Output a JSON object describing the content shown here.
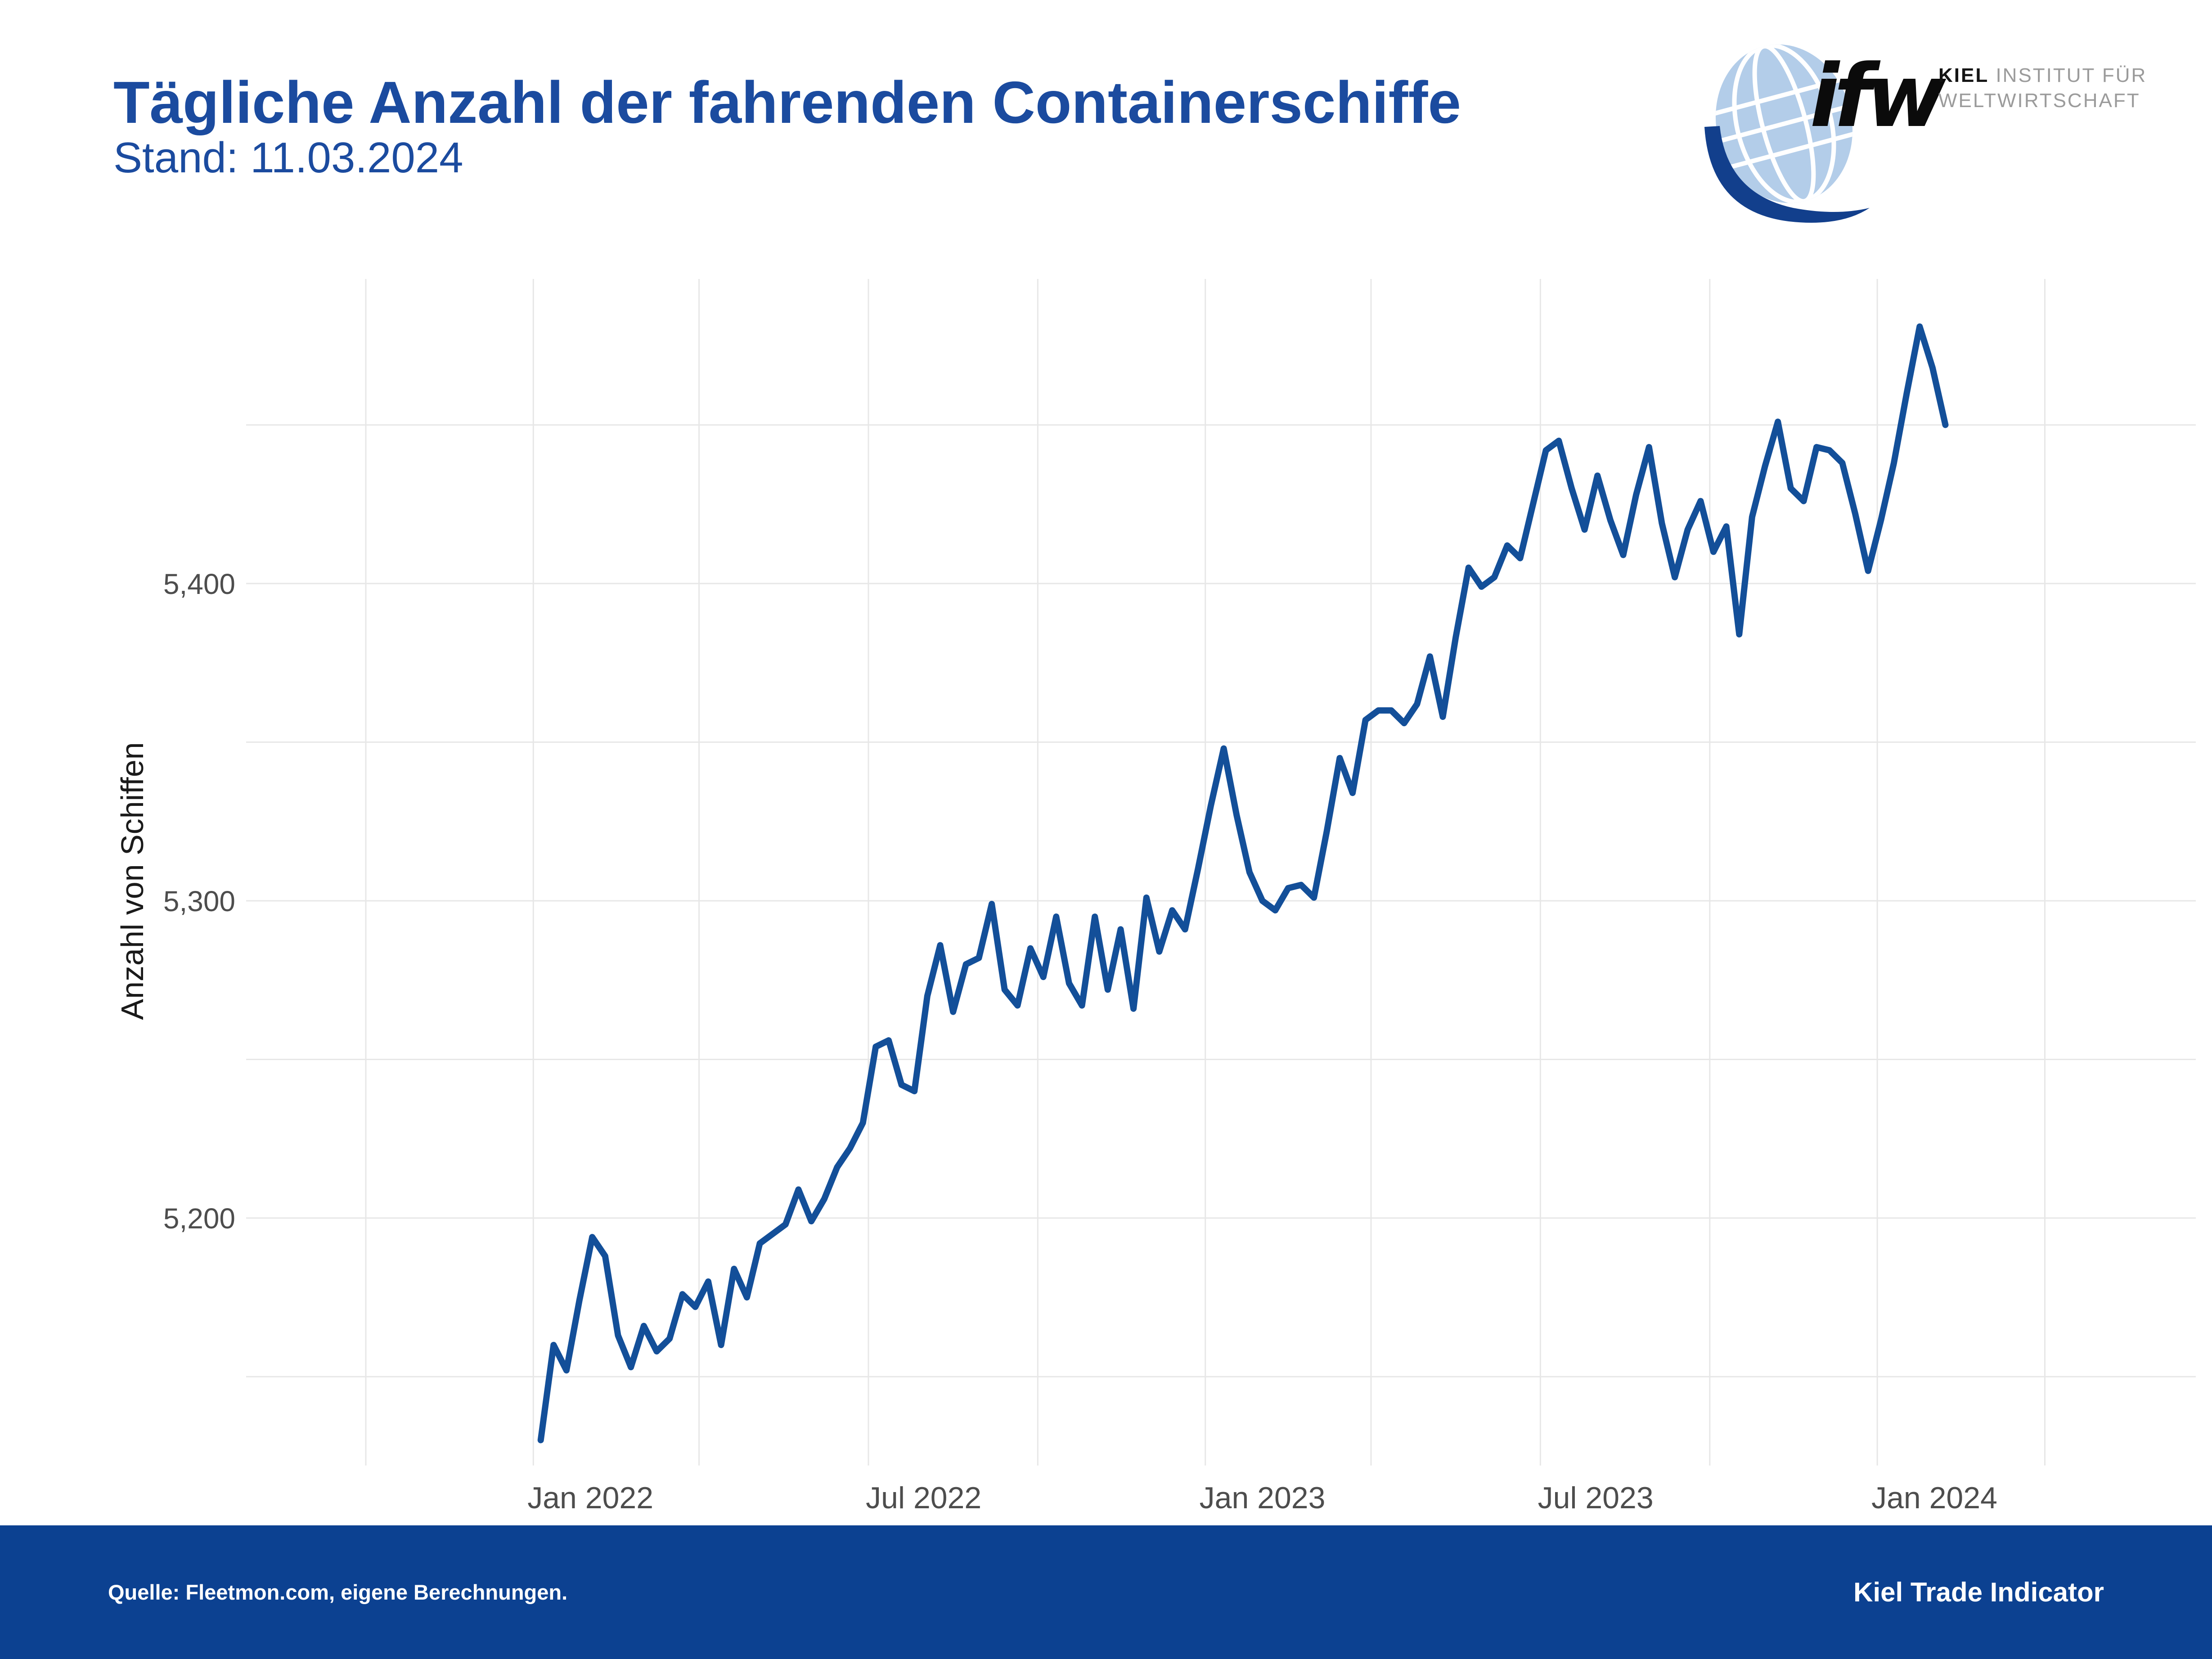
{
  "header": {
    "title": "Tägliche Anzahl der fahrenden Containerschiffe",
    "subtitle": "Stand: 11.03.2024"
  },
  "logo": {
    "wordmark": "ifw",
    "org_bold": "KIEL",
    "org_line1_rest": " INSTITUT FÜR",
    "org_line2": "WELTWIRTSCHAFT",
    "globe_color": "#b3cde9",
    "swoosh_color": "#123f8c"
  },
  "footer": {
    "source": "Quelle: Fleetmon.com, eigene Berechnungen.",
    "brand": "Kiel Trade Indicator",
    "bar_color": "#0c4191"
  },
  "chart_data": {
    "type": "line",
    "title": "Tägliche Anzahl der fahrenden Containerschiffe",
    "xlabel": "",
    "ylabel": "Anzahl von Schiffen",
    "line_color": "#134f99",
    "grid": "on",
    "legend": "none",
    "grid_color": "#e7e7e7",
    "tick_label_color": "#4d4d4d",
    "axis_title_color": "#1a1a1a",
    "xlim": [
      "2021-06-28",
      "2024-05-22"
    ],
    "ylim": [
      5122,
      5496
    ],
    "y_tick_values": [
      5200,
      5300,
      5400
    ],
    "y_tick_labels": [
      "5,200",
      "5,300",
      "5,400"
    ],
    "y_gridlines": [
      5150,
      5200,
      5250,
      5300,
      5350,
      5400,
      5450
    ],
    "x_ticks": [
      {
        "date": "2022-01-01",
        "label": "Jan 2022"
      },
      {
        "date": "2022-07-01",
        "label": "Jul 2022"
      },
      {
        "date": "2023-01-01",
        "label": "Jan 2023"
      },
      {
        "date": "2023-07-01",
        "label": "Jul 2023"
      },
      {
        "date": "2024-01-01",
        "label": "Jan 2024"
      }
    ],
    "x_gridline_dates": [
      "2021-09-01",
      "2021-12-01",
      "2022-03-01",
      "2022-06-01",
      "2022-09-01",
      "2022-12-01",
      "2023-03-01",
      "2023-06-01",
      "2023-09-01",
      "2023-12-01",
      "2024-03-01"
    ],
    "x": [
      "2021-12-05",
      "2021-12-12",
      "2021-12-19",
      "2021-12-26",
      "2022-01-02",
      "2022-01-09",
      "2022-01-16",
      "2022-01-23",
      "2022-01-30",
      "2022-02-06",
      "2022-02-13",
      "2022-02-20",
      "2022-02-27",
      "2022-03-06",
      "2022-03-13",
      "2022-03-20",
      "2022-03-27",
      "2022-04-03",
      "2022-04-10",
      "2022-04-17",
      "2022-04-24",
      "2022-05-01",
      "2022-05-08",
      "2022-05-15",
      "2022-05-22",
      "2022-05-29",
      "2022-06-05",
      "2022-06-12",
      "2022-06-19",
      "2022-06-26",
      "2022-07-03",
      "2022-07-10",
      "2022-07-17",
      "2022-07-24",
      "2022-07-31",
      "2022-08-07",
      "2022-08-14",
      "2022-08-21",
      "2022-08-28",
      "2022-09-04",
      "2022-09-11",
      "2022-09-18",
      "2022-09-25",
      "2022-10-02",
      "2022-10-09",
      "2022-10-16",
      "2022-10-23",
      "2022-10-30",
      "2022-11-06",
      "2022-11-13",
      "2022-11-20",
      "2022-11-27",
      "2022-12-04",
      "2022-12-11",
      "2022-12-18",
      "2022-12-25",
      "2023-01-01",
      "2023-01-08",
      "2023-01-15",
      "2023-01-22",
      "2023-01-29",
      "2023-02-05",
      "2023-02-12",
      "2023-02-19",
      "2023-02-26",
      "2023-03-05",
      "2023-03-12",
      "2023-03-19",
      "2023-03-26",
      "2023-04-02",
      "2023-04-09",
      "2023-04-16",
      "2023-04-23",
      "2023-04-30",
      "2023-05-07",
      "2023-05-14",
      "2023-05-21",
      "2023-05-28",
      "2023-06-04",
      "2023-06-11",
      "2023-06-18",
      "2023-06-25",
      "2023-07-02",
      "2023-07-09",
      "2023-07-16",
      "2023-07-23",
      "2023-07-30",
      "2023-08-06",
      "2023-08-13",
      "2023-08-20",
      "2023-08-27",
      "2023-09-03",
      "2023-09-10",
      "2023-09-17",
      "2023-09-24",
      "2023-10-01",
      "2023-10-08",
      "2023-10-15",
      "2023-10-22",
      "2023-10-29",
      "2023-11-05",
      "2023-11-12",
      "2023-11-19",
      "2023-11-26",
      "2023-12-03",
      "2023-12-10",
      "2023-12-17",
      "2023-12-24",
      "2023-12-31",
      "2024-01-07"
    ],
    "values": [
      5130,
      5160,
      5152,
      5174,
      5194,
      5188,
      5163,
      5153,
      5166,
      5158,
      5162,
      5176,
      5172,
      5180,
      5160,
      5184,
      5175,
      5192,
      5195,
      5198,
      5209,
      5199,
      5206,
      5216,
      5222,
      5230,
      5254,
      5256,
      5242,
      5240,
      5270,
      5286,
      5265,
      5280,
      5282,
      5299,
      5272,
      5267,
      5285,
      5276,
      5295,
      5274,
      5267,
      5295,
      5272,
      5291,
      5266,
      5301,
      5284,
      5297,
      5291,
      5310,
      5330,
      5348,
      5327,
      5309,
      5300,
      5297,
      5304,
      5305,
      5301,
      5322,
      5345,
      5334,
      5357,
      5360,
      5360,
      5356,
      5362,
      5377,
      5358,
      5383,
      5405,
      5399,
      5402,
      5412,
      5408,
      5425,
      5442,
      5445,
      5430,
      5417,
      5434,
      5420,
      5409,
      5428,
      5443,
      5419,
      5402,
      5417,
      5426,
      5410,
      5418,
      5384,
      5421,
      5437,
      5451,
      5430,
      5426,
      5443,
      5442,
      5438,
      5422,
      5404,
      5420,
      5438,
      5460,
      5481,
      5468,
      5450
    ]
  }
}
